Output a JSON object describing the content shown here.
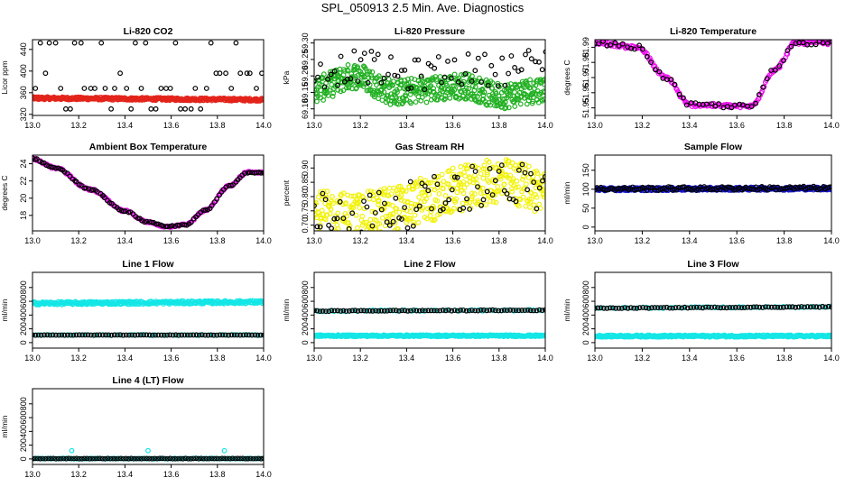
{
  "page": {
    "title": "SPL_050913  2.5 Min. Ave. Diagnostics"
  },
  "colors": {
    "black": "#000000",
    "red": "#e3241b",
    "green": "#22b022",
    "magenta": "#ee10ee",
    "yellow": "#f2f20a",
    "blue": "#1515c8",
    "cyan": "#14e6e6"
  },
  "chart_data": [
    {
      "id": "co2",
      "type": "scatter",
      "title": "Li-820 CO2",
      "ylabel": "Licor ppm",
      "xlim": [
        13.0,
        14.0
      ],
      "ylim": [
        318,
        458
      ],
      "xticks": [
        13.0,
        13.2,
        13.4,
        13.6,
        13.8,
        14.0
      ],
      "yticks": [
        320,
        360,
        400,
        440
      ],
      "series": [
        {
          "name": "black-scattered",
          "color": "black",
          "pattern": "levels",
          "levels": [
            330,
            368,
            396,
            452
          ],
          "n": 46
        },
        {
          "name": "red-dense",
          "color": "red",
          "pattern": "band",
          "start": 350,
          "end": 347,
          "spread": 2.5,
          "n": 420
        }
      ]
    },
    {
      "id": "pressure",
      "type": "scatter",
      "title": "Li-820 Pressure",
      "ylabel": "kPa",
      "xlim": [
        13.0,
        14.0
      ],
      "ylim": [
        69.08,
        69.31
      ],
      "xticks": [
        13.0,
        13.2,
        13.4,
        13.6,
        13.8,
        14.0
      ],
      "yticks": [
        69.1,
        69.15,
        69.2,
        69.25,
        69.3
      ],
      "series": [
        {
          "name": "green-dense",
          "color": "green",
          "pattern": "wave",
          "points": [
            [
              13.0,
              69.16
            ],
            [
              13.18,
              69.2
            ],
            [
              13.35,
              69.15
            ],
            [
              13.5,
              69.16
            ],
            [
              13.65,
              69.17
            ],
            [
              13.8,
              69.14
            ],
            [
              14.0,
              69.16
            ]
          ],
          "spread": 0.04,
          "n": 520
        },
        {
          "name": "black-sparse",
          "color": "black",
          "pattern": "wave",
          "points": [
            [
              13.0,
              69.21
            ],
            [
              13.2,
              69.23
            ],
            [
              13.4,
              69.2
            ],
            [
              13.6,
              69.22
            ],
            [
              13.8,
              69.22
            ],
            [
              14.0,
              69.24
            ]
          ],
          "spread": 0.05,
          "n": 70
        }
      ]
    },
    {
      "id": "temperature",
      "type": "scatter",
      "title": "Li-820 Temperature",
      "ylabel": "degrees C",
      "xlim": [
        13.0,
        14.0
      ],
      "ylim": [
        51.945,
        51.995
      ],
      "xticks": [
        13.0,
        13.2,
        13.4,
        13.6,
        13.8,
        14.0
      ],
      "yticks": [
        51.95,
        51.96,
        51.97,
        51.98,
        51.99
      ],
      "series": [
        {
          "name": "magenta-dense",
          "color": "magenta",
          "pattern": "curve",
          "points": [
            [
              13.0,
              51.993
            ],
            [
              13.18,
              51.99
            ],
            [
              13.3,
              51.97
            ],
            [
              13.4,
              51.952
            ],
            [
              13.66,
              51.951
            ],
            [
              13.76,
              51.975
            ],
            [
              13.85,
              51.993
            ],
            [
              14.0,
              51.993
            ]
          ],
          "spread": 0.0012,
          "n": 220
        },
        {
          "name": "black-sparse",
          "color": "black",
          "pattern": "curve",
          "points": [
            [
              13.0,
              51.993
            ],
            [
              13.18,
              51.99
            ],
            [
              13.3,
              51.97
            ],
            [
              13.4,
              51.952
            ],
            [
              13.66,
              51.951
            ],
            [
              13.76,
              51.975
            ],
            [
              13.85,
              51.993
            ],
            [
              14.0,
              51.993
            ]
          ],
          "spread": 0.0015,
          "n": 60
        }
      ]
    },
    {
      "id": "ambient",
      "type": "scatter",
      "title": "Ambient Box Temperature",
      "ylabel": "degrees C",
      "xlim": [
        13.0,
        14.0
      ],
      "ylim": [
        16.2,
        25.0
      ],
      "xticks": [
        13.0,
        13.2,
        13.4,
        13.6,
        13.8,
        14.0
      ],
      "yticks": [
        18,
        20,
        22,
        24
      ],
      "series": [
        {
          "name": "magenta-dense",
          "color": "magenta",
          "pattern": "curve",
          "points": [
            [
              13.0,
              24.6
            ],
            [
              13.1,
              23.5
            ],
            [
              13.25,
              21.0
            ],
            [
              13.4,
              18.5
            ],
            [
              13.5,
              17.2
            ],
            [
              13.58,
              16.7
            ],
            [
              13.66,
              16.9
            ],
            [
              13.75,
              18.6
            ],
            [
              13.85,
              21.4
            ],
            [
              13.93,
              23.0
            ],
            [
              14.0,
              23.0
            ]
          ],
          "spread": 0.12,
          "n": 200
        },
        {
          "name": "black-sparse",
          "color": "black",
          "pattern": "curve",
          "points": [
            [
              13.0,
              24.6
            ],
            [
              13.1,
              23.5
            ],
            [
              13.25,
              21.0
            ],
            [
              13.4,
              18.5
            ],
            [
              13.5,
              17.2
            ],
            [
              13.58,
              16.7
            ],
            [
              13.66,
              16.9
            ],
            [
              13.75,
              18.6
            ],
            [
              13.85,
              21.4
            ],
            [
              13.93,
              23.0
            ],
            [
              14.0,
              23.0
            ]
          ],
          "spread": 0.08,
          "n": 100
        }
      ]
    },
    {
      "id": "rh",
      "type": "scatter",
      "title": "Gas Stream RH",
      "ylabel": "percent",
      "xlim": [
        13.0,
        14.0
      ],
      "ylim": [
        0.68,
        0.945
      ],
      "xticks": [
        13.0,
        13.2,
        13.4,
        13.6,
        13.8,
        14.0
      ],
      "yticks": [
        0.7,
        0.75,
        0.8,
        0.85,
        0.9
      ],
      "series": [
        {
          "name": "yellow-dense",
          "color": "yellow",
          "pattern": "wave",
          "points": [
            [
              13.0,
              0.74
            ],
            [
              13.2,
              0.735
            ],
            [
              13.35,
              0.76
            ],
            [
              13.5,
              0.79
            ],
            [
              13.65,
              0.83
            ],
            [
              13.8,
              0.855
            ],
            [
              13.9,
              0.84
            ],
            [
              14.0,
              0.82
            ]
          ],
          "spread": 0.08,
          "n": 480
        },
        {
          "name": "black-sparse",
          "color": "black",
          "pattern": "wave",
          "points": [
            [
              13.0,
              0.74
            ],
            [
              13.2,
              0.735
            ],
            [
              13.35,
              0.76
            ],
            [
              13.5,
              0.79
            ],
            [
              13.65,
              0.83
            ],
            [
              13.8,
              0.855
            ],
            [
              13.9,
              0.84
            ],
            [
              14.0,
              0.82
            ]
          ],
          "spread": 0.08,
          "n": 80
        }
      ]
    },
    {
      "id": "sample",
      "type": "scatter",
      "title": "Sample Flow",
      "ylabel": "ml/min",
      "xlim": [
        13.0,
        14.0
      ],
      "ylim": [
        -10,
        190
      ],
      "xticks": [
        13.0,
        13.2,
        13.4,
        13.6,
        13.8,
        14.0
      ],
      "yticks": [
        0,
        50,
        100,
        150
      ],
      "series": [
        {
          "name": "blue-dense",
          "color": "blue",
          "pattern": "band",
          "start": 100,
          "end": 102,
          "spread": 4,
          "n": 420
        },
        {
          "name": "black-sparse",
          "color": "black",
          "pattern": "band",
          "start": 101,
          "end": 103,
          "spread": 5,
          "n": 120
        }
      ]
    },
    {
      "id": "line1",
      "type": "scatter",
      "title": "Line 1 Flow",
      "ylabel": "ml/min",
      "xlim": [
        13.0,
        14.0
      ],
      "ylim": [
        -80,
        1020
      ],
      "xticks": [
        13.0,
        13.2,
        13.4,
        13.6,
        13.8,
        14.0
      ],
      "yticks": [
        0,
        200,
        400,
        600,
        800
      ],
      "series": [
        {
          "name": "cyan-high",
          "color": "cyan",
          "pattern": "band",
          "start": 570,
          "end": 590,
          "spread": 22,
          "n": 340
        },
        {
          "name": "cyan-low",
          "color": "cyan",
          "pattern": "band",
          "start": 110,
          "end": 110,
          "spread": 6,
          "n": 60
        },
        {
          "name": "black-low",
          "color": "black",
          "pattern": "band",
          "start": 110,
          "end": 110,
          "spread": 3,
          "n": 80
        }
      ]
    },
    {
      "id": "line2",
      "type": "scatter",
      "title": "Line 2 Flow",
      "ylabel": "ml/min",
      "xlim": [
        13.0,
        14.0
      ],
      "ylim": [
        -80,
        1020
      ],
      "xticks": [
        13.0,
        13.2,
        13.4,
        13.6,
        13.8,
        14.0
      ],
      "yticks": [
        0,
        200,
        400,
        600,
        800
      ],
      "series": [
        {
          "name": "cyan-low",
          "color": "cyan",
          "pattern": "band",
          "start": 100,
          "end": 100,
          "spread": 12,
          "n": 340
        },
        {
          "name": "cyan-high",
          "color": "cyan",
          "pattern": "band",
          "start": 460,
          "end": 470,
          "spread": 10,
          "n": 60
        },
        {
          "name": "black-high",
          "color": "black",
          "pattern": "band",
          "start": 460,
          "end": 470,
          "spread": 6,
          "n": 80
        }
      ]
    },
    {
      "id": "line3",
      "type": "scatter",
      "title": "Line 3 Flow",
      "ylabel": "ml/min",
      "xlim": [
        13.0,
        14.0
      ],
      "ylim": [
        -80,
        1020
      ],
      "xticks": [
        13.0,
        13.2,
        13.4,
        13.6,
        13.8,
        14.0
      ],
      "yticks": [
        0,
        200,
        400,
        600,
        800
      ],
      "series": [
        {
          "name": "cyan-low",
          "color": "cyan",
          "pattern": "band",
          "start": 95,
          "end": 95,
          "spread": 14,
          "n": 340
        },
        {
          "name": "cyan-high",
          "color": "cyan",
          "pattern": "band",
          "start": 500,
          "end": 520,
          "spread": 10,
          "n": 60
        },
        {
          "name": "black-high",
          "color": "black",
          "pattern": "band",
          "start": 500,
          "end": 520,
          "spread": 6,
          "n": 80
        }
      ]
    },
    {
      "id": "line4",
      "type": "scatter",
      "title": "Line 4 (LT) Flow",
      "ylabel": "ml/min",
      "xlim": [
        13.0,
        14.0
      ],
      "ylim": [
        -80,
        1020
      ],
      "xticks": [
        13.0,
        13.2,
        13.4,
        13.6,
        13.8,
        14.0
      ],
      "yticks": [
        0,
        200,
        400,
        600,
        800
      ],
      "series": [
        {
          "name": "cyan-base",
          "color": "cyan",
          "pattern": "band",
          "start": 5,
          "end": 5,
          "spread": 4,
          "n": 100
        },
        {
          "name": "cyan-spikes",
          "color": "cyan",
          "pattern": "points",
          "x": [
            13.17,
            13.5,
            13.83
          ],
          "y": [
            120,
            120,
            120
          ]
        },
        {
          "name": "black-base",
          "color": "black",
          "pattern": "band",
          "start": 5,
          "end": 5,
          "spread": 3,
          "n": 90
        }
      ]
    }
  ]
}
